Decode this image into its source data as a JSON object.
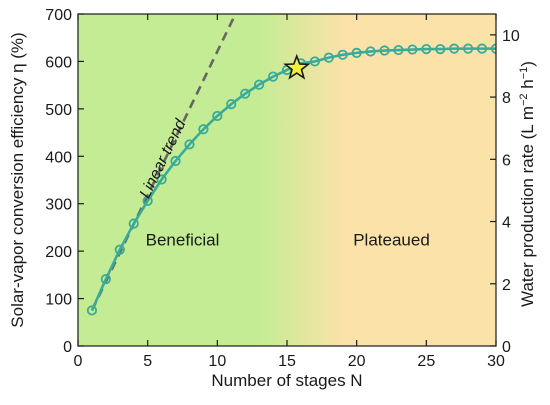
{
  "chart_data": {
    "type": "line",
    "x_label": "Number of stages N",
    "y_label": "Solar-vapor conversion efficiency η (%)",
    "y2_label_main": "Water production rate (L m",
    "y2_label_sup1": "−2",
    "y2_label_mid": " h",
    "y2_label_sup2": "−1",
    "y2_label_end": ")",
    "xlim": [
      0,
      30
    ],
    "ylim": [
      0,
      700
    ],
    "y2lim": [
      0,
      10.67
    ],
    "x_ticks": [
      0,
      5,
      10,
      15,
      20,
      25,
      30
    ],
    "y_ticks": [
      0,
      100,
      200,
      300,
      400,
      500,
      600,
      700
    ],
    "y2_ticks": [
      0,
      2,
      4,
      6,
      8,
      10
    ],
    "x": [
      1,
      2,
      3,
      4,
      5,
      6,
      7,
      8,
      9,
      10,
      11,
      12,
      13,
      14,
      15,
      16,
      17,
      18,
      19,
      20,
      21,
      22,
      23,
      24,
      25,
      26,
      27,
      28,
      29,
      30
    ],
    "series": [
      {
        "values": [
          75,
          141,
          203,
          258,
          306,
          351,
          390,
          425,
          457,
          485,
          510,
          532,
          551,
          568,
          582,
          596,
          600,
          608,
          614,
          618,
          621,
          623,
          624,
          625,
          626,
          626,
          627,
          627,
          627,
          627
        ],
        "color": "#3aaa99"
      }
    ],
    "trend": {
      "label": "Linear trend",
      "x": [
        1,
        11.3
      ],
      "y": [
        75,
        700
      ],
      "color": "#666666"
    },
    "optimum": {
      "x": 15.7,
      "y": 586,
      "color": "#f2f23c"
    },
    "regions": [
      {
        "label": "Beneficial",
        "label_x": 7.5,
        "label_y": 225
      },
      {
        "label": "Plateaued",
        "label_x": 22.5,
        "label_y": 225
      }
    ],
    "background": {
      "left_color": "#c4ec94",
      "right_color": "#fbe2a8",
      "transition_start": 13,
      "transition_end": 19
    }
  }
}
